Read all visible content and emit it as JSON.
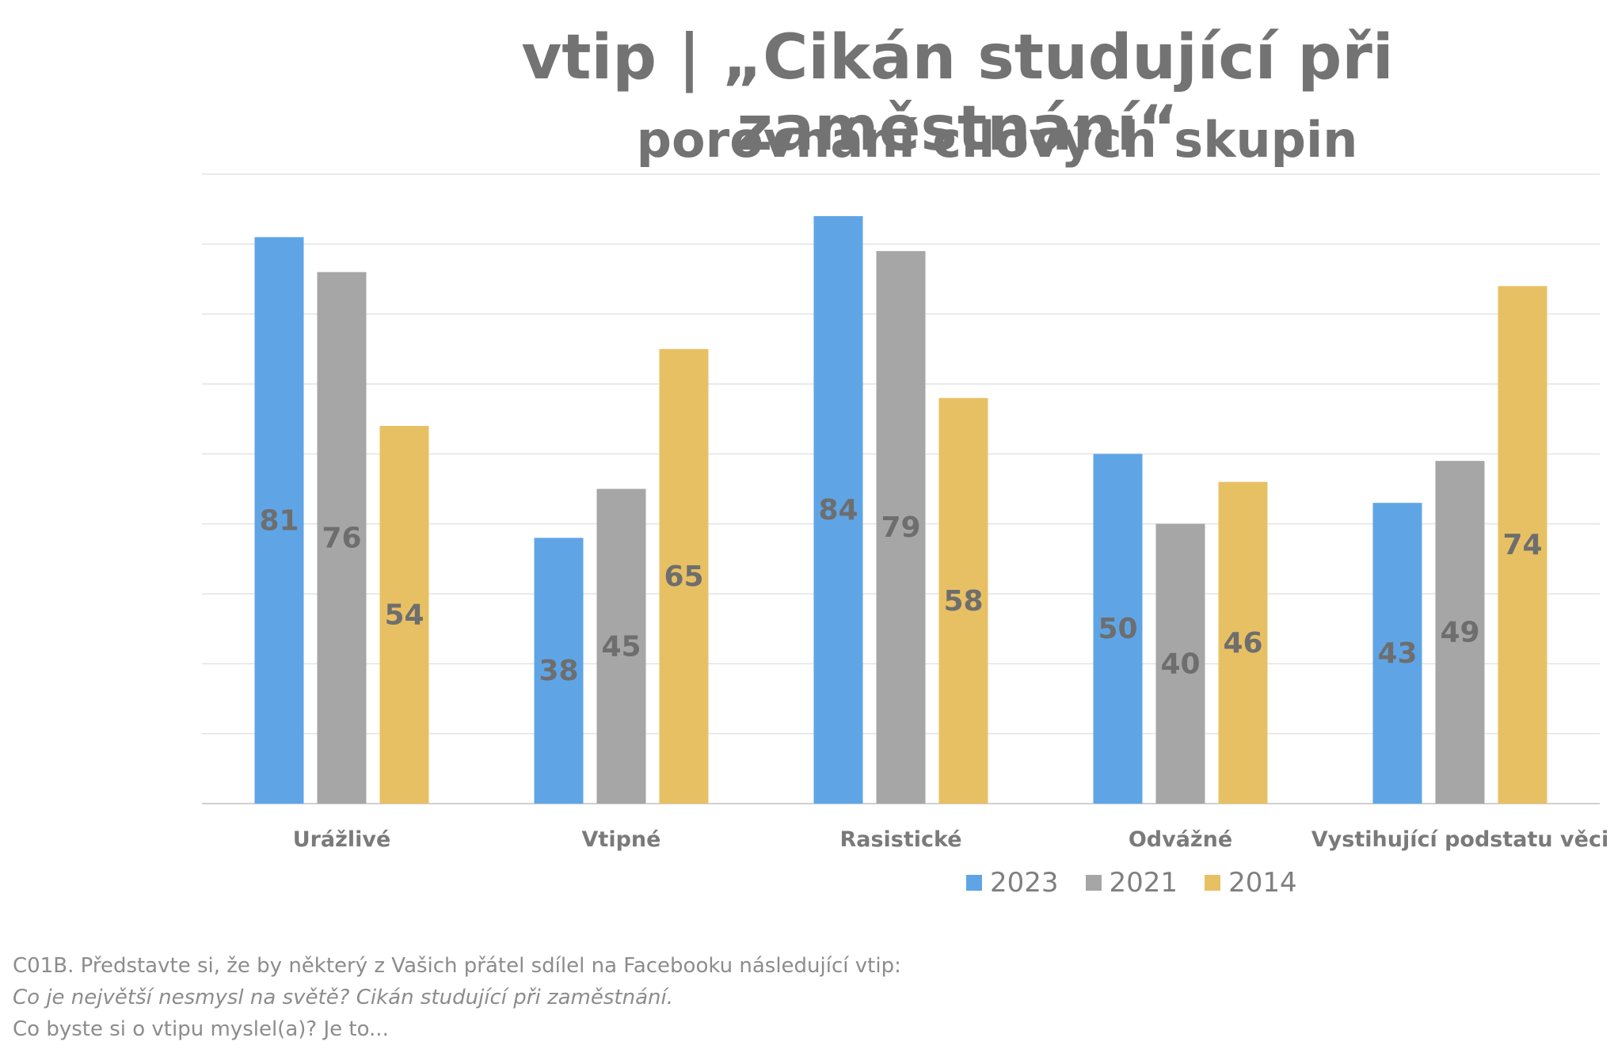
{
  "header": {
    "title": "vtip | „Cikán studující při zaměstnání“",
    "subtitle": "porovnání cílových skupin"
  },
  "chart_data": {
    "type": "bar",
    "categories": [
      "Urážlivé",
      "Vtipné",
      "Rasistické",
      "Odvážné",
      "Vystihující podstatu věci"
    ],
    "series": [
      {
        "name": "2023",
        "color": "#5fa5e6",
        "values": [
          81,
          38,
          84,
          50,
          43
        ]
      },
      {
        "name": "2021",
        "color": "#a6a6a6",
        "values": [
          76,
          45,
          79,
          40,
          49
        ]
      },
      {
        "name": "2014",
        "color": "#e8c064",
        "values": [
          54,
          65,
          58,
          46,
          74
        ]
      }
    ],
    "ylim": [
      0,
      90
    ],
    "grid": true,
    "legend": "bottom-center",
    "data_labels": true
  },
  "legend": {
    "items": [
      {
        "label": "2023",
        "color": "#5fa5e6"
      },
      {
        "label": "2021",
        "color": "#a6a6a6"
      },
      {
        "label": "2014",
        "color": "#e8c064"
      }
    ]
  },
  "footnote": {
    "line1": "C01B. Představte si, že by některý z Vašich přátel sdílel na Facebooku následující vtip:",
    "line2": "Co je největší nesmysl na světě? Cikán studující při zaměstnání.",
    "line3": "Co byste si o vtipu myslel(a)? Je to..."
  }
}
